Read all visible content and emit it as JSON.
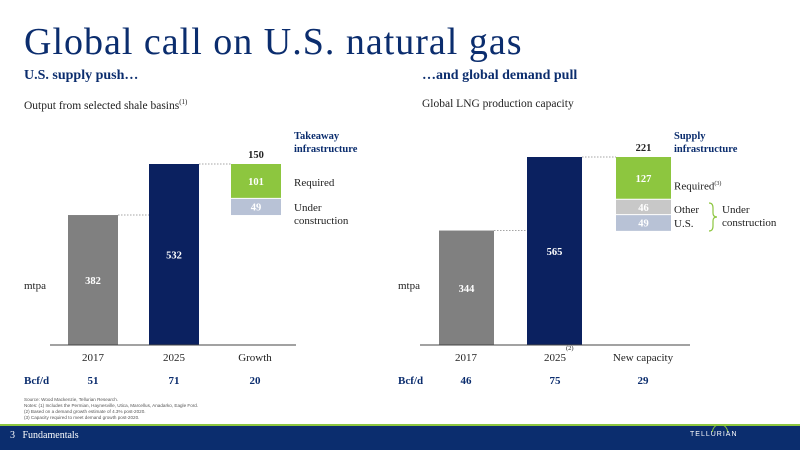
{
  "slide": {
    "title": "Global call on U.S. natural gas",
    "footer_page": "3",
    "footer_section": "Fundamentals",
    "logo_text": "TELLURIAN",
    "sources": [
      "Source:   Wood Mackenzie, Tellurian Research.",
      "Notes:    (1) Includes the Permian, Haynesville, Utica, Marcellus, Anadarko, Eagle Ford.",
      "              (2) Based on a demand growth estimate of 4.3% post-2020.",
      "              (3) Capacity required to meet demand growth post-2020."
    ]
  },
  "left": {
    "subhead": "U.S. supply push…",
    "subtitle": "Output from selected shale basins",
    "subtitle_note": "(1)",
    "unit": "mtpa",
    "legend_head": [
      "Takeaway",
      "infrastructure"
    ],
    "label_required": "Required",
    "label_under": [
      "Under",
      "construction"
    ],
    "bcfd_label": "Bcf/d"
  },
  "right": {
    "subhead": "…and global demand pull",
    "subtitle": "Global LNG production capacity",
    "unit": "mtpa",
    "legend_head": [
      "Supply",
      "infrastructure"
    ],
    "label_required": "Required",
    "label_required_note": "(3)",
    "label_other": "Other",
    "label_us": "U.S.",
    "label_under": [
      "Under",
      "construction"
    ],
    "note_2025": "(2)",
    "bcfd_label": "Bcf/d"
  },
  "chart_data": [
    {
      "type": "bar",
      "title": "Output from selected shale basins",
      "ylabel": "mtpa",
      "categories": [
        "2017",
        "2025",
        "Growth"
      ],
      "values": [
        382,
        532,
        150
      ],
      "growth_segments": [
        {
          "name": "Required",
          "value": 101,
          "color": "#8dc63f"
        },
        {
          "name": "Under construction",
          "value": 49,
          "color": "#b8c2d6"
        }
      ],
      "growth_total": "150",
      "bcfd": [
        "51",
        "71",
        "20"
      ],
      "colors": {
        "2017": "#808080",
        "2025": "#0b2160"
      }
    },
    {
      "type": "bar",
      "title": "Global LNG production capacity",
      "ylabel": "mtpa",
      "categories": [
        "2017",
        "2025",
        "New capacity"
      ],
      "values": [
        344,
        565,
        221
      ],
      "growth_segments": [
        {
          "name": "Required",
          "value": 127,
          "color": "#8dc63f"
        },
        {
          "name": "Other",
          "value": 46,
          "color": "#c8c8c8"
        },
        {
          "name": "U.S.",
          "value": 49,
          "color": "#b8c2d6"
        }
      ],
      "growth_total": "221",
      "bcfd": [
        "46",
        "75",
        "29"
      ],
      "colors": {
        "2017": "#808080",
        "2025": "#0b2160"
      }
    }
  ]
}
